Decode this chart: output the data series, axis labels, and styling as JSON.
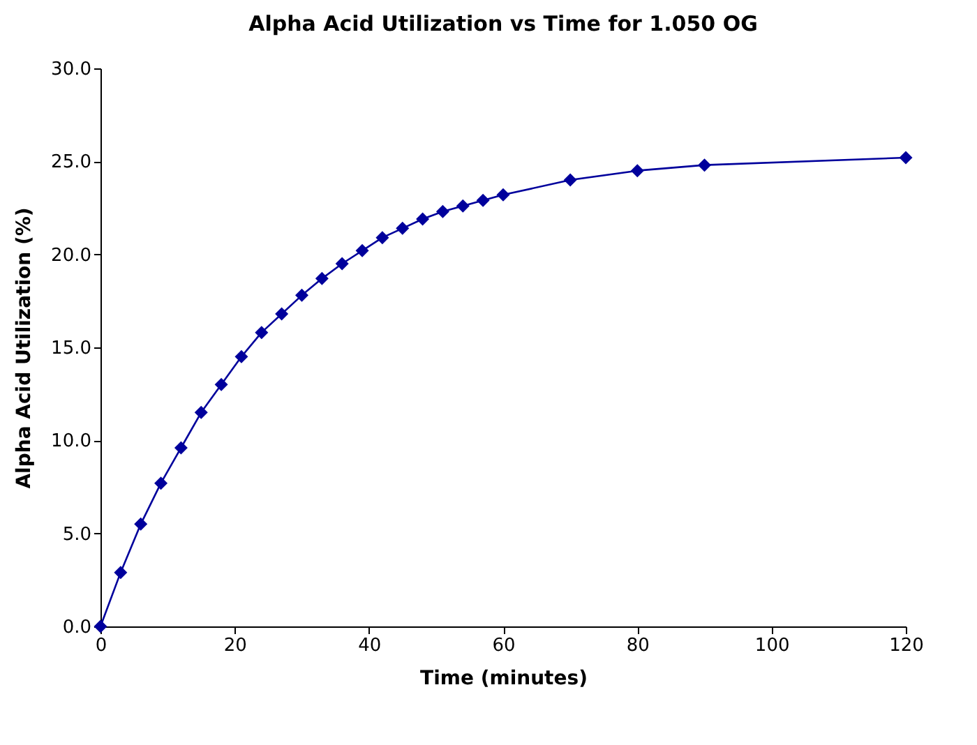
{
  "chart_data": {
    "type": "line",
    "title": "Alpha Acid Utilization vs Time for 1.050 OG",
    "xlabel": "Time (minutes)",
    "ylabel": "Alpha Acid Utilization (%)",
    "x": [
      0,
      3,
      6,
      9,
      12,
      15,
      18,
      21,
      24,
      27,
      30,
      33,
      36,
      39,
      42,
      45,
      48,
      51,
      54,
      57,
      60,
      70,
      80,
      90,
      120
    ],
    "series": [
      {
        "color": "#00009c",
        "values": [
          0,
          2.9,
          5.5,
          7.7,
          9.6,
          11.5,
          13.0,
          14.5,
          15.8,
          16.8,
          17.8,
          18.7,
          19.5,
          20.2,
          20.9,
          21.4,
          21.9,
          22.3,
          22.6,
          22.9,
          23.2,
          24.0,
          24.5,
          24.8,
          25.2
        ]
      }
    ],
    "xlim": [
      0,
      120
    ],
    "xticks": [
      0,
      20,
      40,
      60,
      80,
      100,
      120
    ],
    "ylim": [
      0,
      30
    ],
    "yticks": [
      {
        "value": 0,
        "label": "0.0"
      },
      {
        "value": 5,
        "label": "5.0"
      },
      {
        "value": 10,
        "label": "10.0"
      },
      {
        "value": 15,
        "label": "15.0"
      },
      {
        "value": 20,
        "label": "20.0"
      },
      {
        "value": 25,
        "label": "25.0"
      },
      {
        "value": 30,
        "label": "30.0"
      }
    ],
    "marker": "diamond",
    "line_style": "solid"
  }
}
